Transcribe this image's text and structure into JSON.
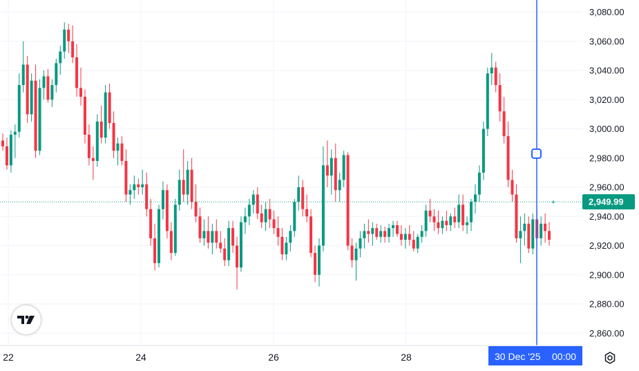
{
  "chart_data": {
    "type": "candlestick",
    "x_ticks": [
      "22",
      "24",
      "26",
      "28"
    ],
    "y_ticks": [
      "3,080.00",
      "3,060.00",
      "3,040.00",
      "3,020.00",
      "3,000.00",
      "2,980.00",
      "2,960.00",
      "2,940.00",
      "2,920.00",
      "2,900.00",
      "2,880.00",
      "2,860.00"
    ],
    "ylim": [
      2856,
      3088
    ],
    "grid": true,
    "last_price": 2949.99,
    "last_price_label": "2,949.99",
    "crosshair": {
      "date_label": "30 Dec '25",
      "time_label": "00:00",
      "price": 2983
    },
    "candles": [
      [
        2992,
        2997,
        2985,
        2988
      ],
      [
        2988,
        2994,
        2972,
        2975
      ],
      [
        2975,
        2999,
        2970,
        2996
      ],
      [
        2996,
        3003,
        2980,
        2998
      ],
      [
        2998,
        3038,
        2994,
        3030
      ],
      [
        3030,
        3060,
        3025,
        3044
      ],
      [
        3044,
        3050,
        3004,
        3010
      ],
      [
        3010,
        3038,
        3005,
        3033
      ],
      [
        3033,
        3044,
        2980,
        2985
      ],
      [
        2985,
        3034,
        2982,
        3028
      ],
      [
        3028,
        3040,
        3020,
        3036
      ],
      [
        3036,
        3041,
        3018,
        3020
      ],
      [
        3020,
        3034,
        3015,
        3030
      ],
      [
        3030,
        3048,
        3025,
        3045
      ],
      [
        3045,
        3057,
        3037,
        3053
      ],
      [
        3053,
        3073,
        3048,
        3068
      ],
      [
        3068,
        3072,
        3052,
        3060
      ],
      [
        3060,
        3071,
        3045,
        3049
      ],
      [
        3049,
        3058,
        3022,
        3028
      ],
      [
        3028,
        3042,
        3016,
        3022
      ],
      [
        3022,
        3027,
        2990,
        2996
      ],
      [
        2996,
        3003,
        2975,
        2980
      ],
      [
        2980,
        2988,
        2965,
        2978
      ],
      [
        2978,
        3010,
        2974,
        3005
      ],
      [
        3005,
        3016,
        2990,
        2994
      ],
      [
        2994,
        3030,
        2990,
        3025
      ],
      [
        3025,
        3031,
        3000,
        3004
      ],
      [
        3004,
        3012,
        2980,
        2985
      ],
      [
        2985,
        2994,
        2975,
        2990
      ],
      [
        2990,
        2995,
        2975,
        2978
      ],
      [
        2978,
        2986,
        2950,
        2955
      ],
      [
        2955,
        2962,
        2948,
        2958
      ],
      [
        2958,
        2968,
        2952,
        2962
      ],
      [
        2962,
        2966,
        2955,
        2960
      ],
      [
        2960,
        2972,
        2955,
        2962
      ],
      [
        2962,
        2970,
        2940,
        2945
      ],
      [
        2945,
        2952,
        2920,
        2925
      ],
      [
        2925,
        2935,
        2903,
        2908
      ],
      [
        2908,
        2948,
        2905,
        2945
      ],
      [
        2945,
        2964,
        2938,
        2958
      ],
      [
        2958,
        2962,
        2925,
        2930
      ],
      [
        2930,
        2936,
        2910,
        2915
      ],
      [
        2915,
        2952,
        2913,
        2948
      ],
      [
        2948,
        2972,
        2944,
        2965
      ],
      [
        2965,
        2986,
        2950,
        2955
      ],
      [
        2955,
        2978,
        2948,
        2972
      ],
      [
        2972,
        2980,
        2945,
        2950
      ],
      [
        2950,
        2962,
        2936,
        2940
      ],
      [
        2940,
        2946,
        2922,
        2925
      ],
      [
        2925,
        2938,
        2920,
        2930
      ],
      [
        2930,
        2940,
        2918,
        2922
      ],
      [
        2922,
        2935,
        2914,
        2930
      ],
      [
        2930,
        2938,
        2918,
        2922
      ],
      [
        2922,
        2930,
        2915,
        2918
      ],
      [
        2918,
        2925,
        2906,
        2910
      ],
      [
        2910,
        2937,
        2906,
        2932
      ],
      [
        2932,
        2937,
        2915,
        2920
      ],
      [
        2920,
        2926,
        2890,
        2905
      ],
      [
        2905,
        2940,
        2902,
        2936
      ],
      [
        2936,
        2946,
        2928,
        2940
      ],
      [
        2940,
        2952,
        2934,
        2948
      ],
      [
        2948,
        2958,
        2942,
        2955
      ],
      [
        2955,
        2960,
        2938,
        2942
      ],
      [
        2942,
        2948,
        2932,
        2936
      ],
      [
        2936,
        2950,
        2930,
        2945
      ],
      [
        2945,
        2952,
        2932,
        2938
      ],
      [
        2938,
        2944,
        2928,
        2932
      ],
      [
        2932,
        2940,
        2920,
        2926
      ],
      [
        2926,
        2932,
        2910,
        2914
      ],
      [
        2914,
        2926,
        2910,
        2922
      ],
      [
        2922,
        2934,
        2916,
        2930
      ],
      [
        2930,
        2952,
        2926,
        2950
      ],
      [
        2950,
        2968,
        2944,
        2960
      ],
      [
        2960,
        2965,
        2940,
        2945
      ],
      [
        2945,
        2955,
        2936,
        2940
      ],
      [
        2940,
        2945,
        2912,
        2915
      ],
      [
        2915,
        2920,
        2895,
        2900
      ],
      [
        2900,
        2925,
        2892,
        2920
      ],
      [
        2920,
        2988,
        2916,
        2975
      ],
      [
        2975,
        2992,
        2960,
        2968
      ],
      [
        2968,
        2986,
        2955,
        2980
      ],
      [
        2980,
        2990,
        2950,
        2958
      ],
      [
        2958,
        2970,
        2950,
        2965
      ],
      [
        2965,
        2985,
        2960,
        2982
      ],
      [
        2982,
        2984,
        2917,
        2920
      ],
      [
        2920,
        2925,
        2905,
        2910
      ],
      [
        2910,
        2922,
        2896,
        2918
      ],
      [
        2918,
        2930,
        2912,
        2925
      ],
      [
        2925,
        2935,
        2918,
        2930
      ],
      [
        2930,
        2938,
        2922,
        2928
      ],
      [
        2928,
        2936,
        2920,
        2932
      ],
      [
        2932,
        2935,
        2924,
        2926
      ],
      [
        2926,
        2934,
        2922,
        2930
      ],
      [
        2930,
        2933,
        2922,
        2926
      ],
      [
        2926,
        2935,
        2922,
        2932
      ],
      [
        2932,
        2937,
        2926,
        2934
      ],
      [
        2934,
        2937,
        2926,
        2928
      ],
      [
        2928,
        2934,
        2920,
        2924
      ],
      [
        2924,
        2932,
        2918,
        2928
      ],
      [
        2928,
        2934,
        2920,
        2924
      ],
      [
        2924,
        2930,
        2916,
        2918
      ],
      [
        2918,
        2928,
        2915,
        2926
      ],
      [
        2926,
        2934,
        2922,
        2930
      ],
      [
        2930,
        2948,
        2926,
        2944
      ],
      [
        2944,
        2952,
        2936,
        2940
      ],
      [
        2940,
        2945,
        2930,
        2936
      ],
      [
        2936,
        2944,
        2928,
        2932
      ],
      [
        2932,
        2940,
        2928,
        2937
      ],
      [
        2937,
        2944,
        2930,
        2934
      ],
      [
        2934,
        2942,
        2930,
        2940
      ],
      [
        2940,
        2946,
        2932,
        2936
      ],
      [
        2936,
        2955,
        2932,
        2948
      ],
      [
        2948,
        2955,
        2930,
        2934
      ],
      [
        2934,
        2940,
        2928,
        2936
      ],
      [
        2936,
        2952,
        2930,
        2950
      ],
      [
        2950,
        2962,
        2942,
        2955
      ],
      [
        2955,
        2975,
        2950,
        2970
      ],
      [
        2970,
        3005,
        2965,
        3000
      ],
      [
        3000,
        3042,
        2995,
        3038
      ],
      [
        3038,
        3052,
        3030,
        3042
      ],
      [
        3042,
        3046,
        3025,
        3030
      ],
      [
        3030,
        3038,
        3005,
        3012
      ],
      [
        3012,
        3022,
        2990,
        2995
      ],
      [
        2995,
        3005,
        2960,
        2965
      ],
      [
        2965,
        2972,
        2950,
        2955
      ],
      [
        2955,
        2962,
        2922,
        2925
      ],
      [
        2925,
        2940,
        2908,
        2930
      ],
      [
        2930,
        2942,
        2920,
        2935
      ],
      [
        2935,
        2940,
        2915,
        2918
      ],
      [
        2918,
        2942,
        2914,
        2938
      ],
      [
        2938,
        2944,
        2920,
        2925
      ],
      [
        2925,
        2940,
        2920,
        2935
      ],
      [
        2935,
        2942,
        2922,
        2930
      ],
      [
        2930,
        2936,
        2920,
        2924
      ],
      [
        2950,
        2951,
        2949,
        2950
      ]
    ]
  }
}
